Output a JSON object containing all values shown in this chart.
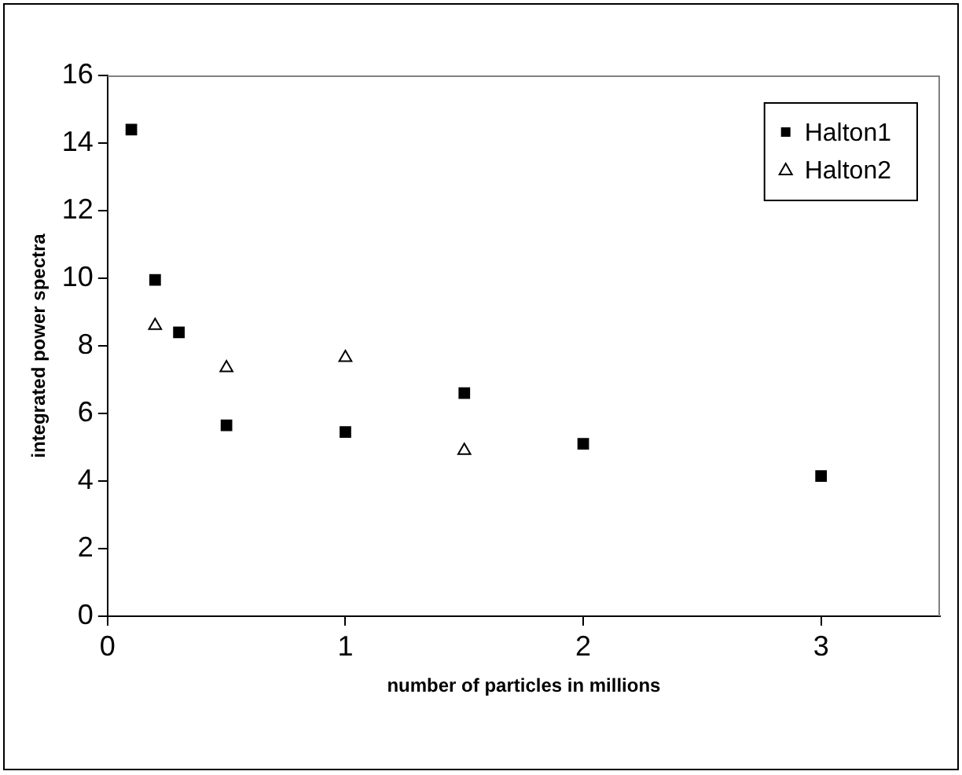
{
  "chart_data": {
    "type": "scatter",
    "xlabel": "number of particles in millions",
    "ylabel": "integrated power spectra",
    "xlim": [
      0,
      3.5
    ],
    "xticks": [
      0,
      1,
      2,
      3
    ],
    "ylim": [
      0,
      16
    ],
    "yticks": [
      0,
      2,
      4,
      6,
      8,
      10,
      12,
      14,
      16
    ],
    "grid": false,
    "legend": "top right",
    "series": [
      {
        "name": "Halton1",
        "color": "#000000",
        "marker": "square",
        "x": [
          0.1,
          0.2,
          0.3,
          0.5,
          1,
          1.5,
          2,
          3
        ],
        "values": [
          14.4,
          9.95,
          8.4,
          5.65,
          5.45,
          6.6,
          5.1,
          4.15
        ]
      },
      {
        "name": "Halton2",
        "color": "#000000",
        "marker": "triangle",
        "x": [
          0.2,
          0.5,
          1,
          1.5
        ],
        "values": [
          8.6,
          7.35,
          7.65,
          4.9
        ]
      }
    ]
  }
}
